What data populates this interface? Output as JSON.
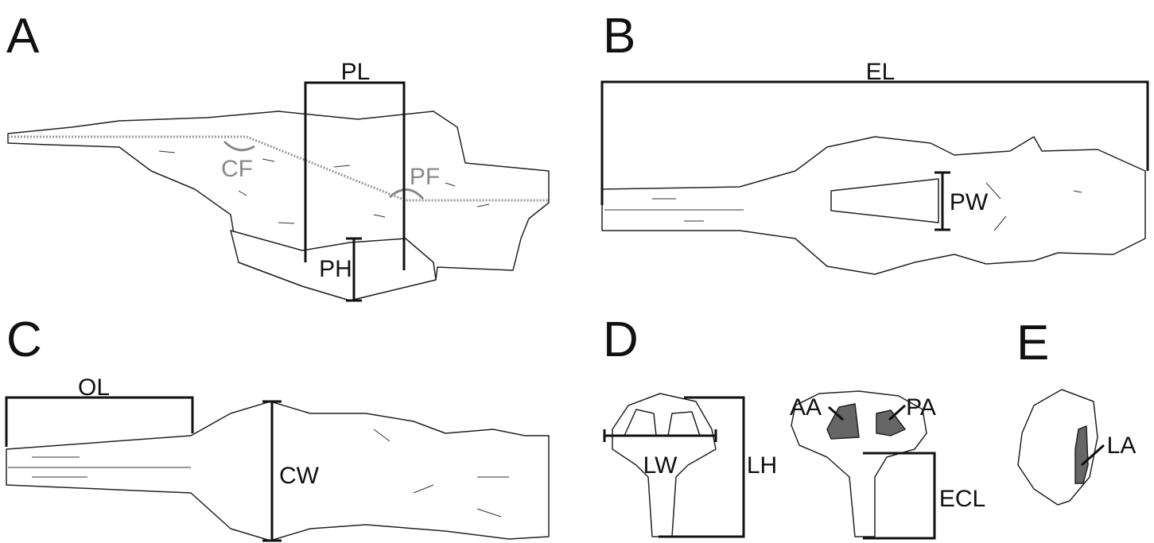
{
  "panels": [
    {
      "letter": "A",
      "labels": [
        "PL",
        "CF",
        "PF",
        "PH"
      ]
    },
    {
      "letter": "B",
      "labels": [
        "EL",
        "PW"
      ]
    },
    {
      "letter": "C",
      "labels": [
        "OL",
        "CW"
      ]
    },
    {
      "letter": "D",
      "labels": [
        "LW",
        "LH",
        "AA",
        "PA",
        "ECL"
      ]
    },
    {
      "letter": "E",
      "labels": [
        "LA"
      ]
    }
  ]
}
